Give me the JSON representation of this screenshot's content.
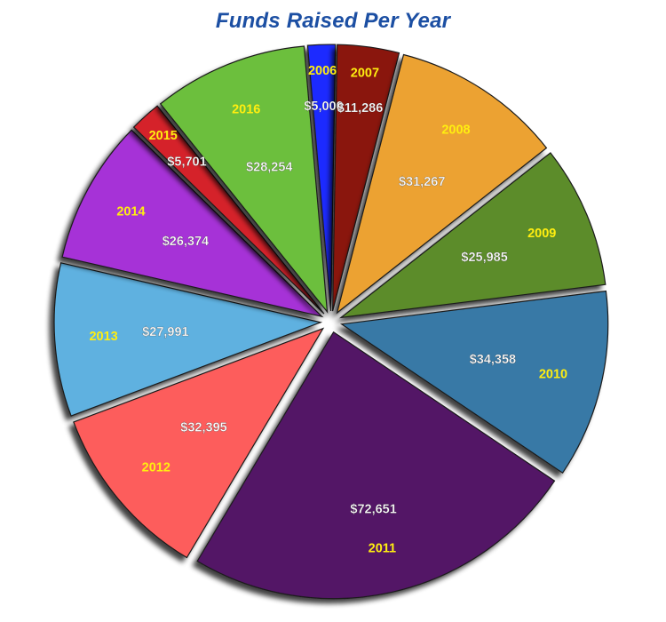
{
  "chart_data": {
    "type": "pie",
    "title": "Funds Raised Per Year",
    "categories": [
      "2006",
      "2007",
      "2008",
      "2009",
      "2010",
      "2011",
      "2012",
      "2013",
      "2014",
      "2015",
      "2016"
    ],
    "values": [
      5000,
      11286,
      31267,
      25985,
      34358,
      72651,
      32395,
      27991,
      26374,
      5701,
      28254
    ],
    "value_labels": [
      "$5,000",
      "$11,286",
      "$31,267",
      "$25,985",
      "$34,358",
      "$72,651",
      "$32,395",
      "$27,991",
      "$26,374",
      "$5,701",
      "$28,254"
    ],
    "colors": [
      "#1e2bff",
      "#8a1408",
      "#eca233",
      "#5b8c2a",
      "#3779a6",
      "#521466",
      "#fd5d5b",
      "#5fb1e0",
      "#a632d7",
      "#d5212b",
      "#6cbf3c"
    ],
    "year_label_color": "#ffee10",
    "value_label_color": "#ffffff",
    "legend": "none",
    "exploded": true,
    "start_angle_deg": -5
  }
}
